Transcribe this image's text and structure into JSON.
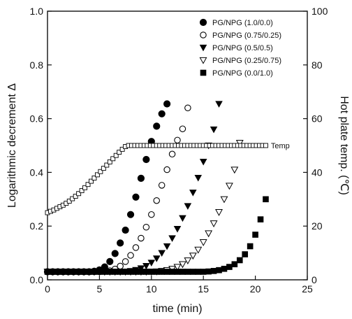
{
  "chart_data": {
    "type": "scatter",
    "title": "",
    "xlabel": "time (min)",
    "ylabel": "Logarithmic decrement Δ",
    "y2label": "Hot plate temp. (℃)",
    "xlim": [
      0,
      25
    ],
    "ylim": [
      0.0,
      1.0
    ],
    "y2lim": [
      0,
      100
    ],
    "xticks": [
      "0",
      "5",
      "10",
      "15",
      "20",
      "25"
    ],
    "yticks": [
      "0.0",
      "0.2",
      "0.4",
      "0.6",
      "0.8",
      "1.0"
    ],
    "y2ticks": [
      "0",
      "20",
      "40",
      "60",
      "80",
      "100"
    ],
    "grid": false,
    "legend_position": "top-right",
    "series": [
      {
        "name": "PG/NPG (1.0/0.0)",
        "marker": "filled-circle",
        "x": [
          0,
          0.5,
          1,
          1.5,
          2,
          2.5,
          3,
          3.5,
          4,
          4.5,
          5,
          5.5,
          6,
          6.5,
          7,
          7.5,
          8,
          8.5,
          9,
          9.5,
          10,
          10.5,
          11,
          11.5
        ],
        "y": [
          0.03,
          0.03,
          0.03,
          0.03,
          0.03,
          0.03,
          0.03,
          0.03,
          0.03,
          0.032,
          0.037,
          0.048,
          0.068,
          0.098,
          0.137,
          0.185,
          0.243,
          0.308,
          0.378,
          0.448,
          0.515,
          0.572,
          0.618,
          0.655
        ]
      },
      {
        "name": "PG/NPG (0.75/0.25)",
        "marker": "open-circle",
        "x": [
          0,
          0.5,
          1,
          1.5,
          2,
          2.5,
          3,
          3.5,
          4,
          4.5,
          5,
          5.5,
          6,
          6.5,
          7,
          7.5,
          8,
          8.5,
          9,
          9.5,
          10,
          10.5,
          11,
          11.5,
          12,
          12.5,
          13,
          13.5
        ],
        "y": [
          0.03,
          0.03,
          0.03,
          0.03,
          0.03,
          0.03,
          0.03,
          0.03,
          0.03,
          0.03,
          0.03,
          0.031,
          0.034,
          0.04,
          0.051,
          0.068,
          0.091,
          0.12,
          0.155,
          0.196,
          0.243,
          0.295,
          0.352,
          0.41,
          0.468,
          0.52,
          0.562,
          0.64
        ]
      },
      {
        "name": "PG/NPG (0.5/0.5)",
        "marker": "filled-triangle-down",
        "x": [
          0,
          0.5,
          1,
          1.5,
          2,
          2.5,
          3,
          3.5,
          4,
          4.5,
          5,
          5.5,
          6,
          6.5,
          7,
          7.5,
          8,
          8.5,
          9,
          9.5,
          10,
          10.5,
          11,
          11.5,
          12,
          12.5,
          13,
          13.5,
          14,
          14.5,
          15,
          15.5,
          16,
          16.5
        ],
        "y": [
          0.03,
          0.03,
          0.03,
          0.03,
          0.03,
          0.03,
          0.03,
          0.03,
          0.03,
          0.03,
          0.03,
          0.03,
          0.03,
          0.03,
          0.03,
          0.031,
          0.033,
          0.037,
          0.043,
          0.052,
          0.064,
          0.08,
          0.1,
          0.125,
          0.155,
          0.19,
          0.23,
          0.275,
          0.325,
          0.38,
          0.44,
          0.5,
          0.56,
          0.655
        ]
      },
      {
        "name": "PG/NPG (0.25/0.75)",
        "marker": "open-triangle-down",
        "x": [
          0,
          0.5,
          1,
          1.5,
          2,
          2.5,
          3,
          3.5,
          4,
          4.5,
          5,
          5.5,
          6,
          6.5,
          7,
          7.5,
          8,
          8.5,
          9,
          9.5,
          10,
          10.5,
          11,
          11.5,
          12,
          12.5,
          13,
          13.5,
          14,
          14.5,
          15,
          15.5,
          16,
          16.5,
          17,
          17.5,
          18,
          18.5
        ],
        "y": [
          0.03,
          0.03,
          0.03,
          0.03,
          0.03,
          0.03,
          0.03,
          0.03,
          0.03,
          0.03,
          0.03,
          0.03,
          0.03,
          0.03,
          0.03,
          0.03,
          0.03,
          0.03,
          0.03,
          0.03,
          0.03,
          0.031,
          0.033,
          0.036,
          0.041,
          0.048,
          0.058,
          0.072,
          0.09,
          0.112,
          0.14,
          0.173,
          0.21,
          0.252,
          0.3,
          0.35,
          0.41,
          0.51
        ]
      },
      {
        "name": "PG/NPG (0.0/1.0)",
        "marker": "filled-square",
        "x": [
          0,
          0.5,
          1,
          1.5,
          2,
          2.5,
          3,
          3.5,
          4,
          4.5,
          5,
          5.5,
          6,
          6.5,
          7,
          7.5,
          8,
          8.5,
          9,
          9.5,
          10,
          10.5,
          11,
          11.5,
          12,
          12.5,
          13,
          13.5,
          14,
          14.5,
          15,
          15.5,
          16,
          16.5,
          17,
          17.5,
          18,
          18.5,
          19,
          19.5,
          20,
          20.5,
          21
        ],
        "y": [
          0.03,
          0.03,
          0.03,
          0.03,
          0.03,
          0.03,
          0.03,
          0.03,
          0.03,
          0.03,
          0.03,
          0.03,
          0.03,
          0.03,
          0.03,
          0.03,
          0.03,
          0.03,
          0.03,
          0.03,
          0.03,
          0.03,
          0.03,
          0.03,
          0.03,
          0.03,
          0.03,
          0.03,
          0.03,
          0.03,
          0.03,
          0.031,
          0.033,
          0.036,
          0.041,
          0.048,
          0.058,
          0.073,
          0.095,
          0.125,
          0.168,
          0.225,
          0.3
        ]
      },
      {
        "name": "Temp",
        "marker": "open-square",
        "axis": "right",
        "x": [
          0,
          0.3,
          0.6,
          0.9,
          1.2,
          1.5,
          1.8,
          2.1,
          2.4,
          2.7,
          3.0,
          3.3,
          3.6,
          3.9,
          4.2,
          4.5,
          4.8,
          5.1,
          5.4,
          5.7,
          6.0,
          6.3,
          6.6,
          6.9,
          7.2,
          7.5,
          7.8,
          8.1,
          8.4,
          8.7,
          9.0,
          9.3,
          9.6,
          9.9,
          10.2,
          10.5,
          10.8,
          11.1,
          11.4,
          11.7,
          12.0,
          12.3,
          12.6,
          12.9,
          13.2,
          13.5,
          13.8,
          14.1,
          14.4,
          14.7,
          15.0,
          15.3,
          15.6,
          15.9,
          16.2,
          16.5,
          16.8,
          17.1,
          17.4,
          17.7,
          18.0,
          18.3,
          18.6,
          18.9,
          19.2,
          19.5,
          19.8,
          20.1,
          20.4,
          20.7,
          21.0
        ],
        "y": [
          25,
          25.5,
          26,
          26.6,
          27.2,
          27.8,
          28.5,
          29.3,
          30.2,
          31.1,
          32.1,
          33.2,
          34.3,
          35.5,
          36.7,
          37.9,
          39.1,
          40.3,
          41.5,
          42.7,
          43.9,
          45.1,
          46.3,
          47.5,
          48.6,
          49.6,
          50,
          50,
          50,
          50,
          50,
          50,
          50,
          50,
          50,
          50,
          50,
          50,
          50,
          50,
          50,
          50,
          50,
          50,
          50,
          50,
          50,
          50,
          50,
          50,
          50,
          50,
          50,
          50,
          50,
          50,
          50,
          50,
          50,
          50,
          50,
          50,
          50,
          50,
          50,
          50,
          50,
          50,
          50,
          50,
          50
        ]
      }
    ],
    "annotations": [
      {
        "text": "Temp",
        "x": 21.5,
        "y2": 50
      }
    ]
  }
}
